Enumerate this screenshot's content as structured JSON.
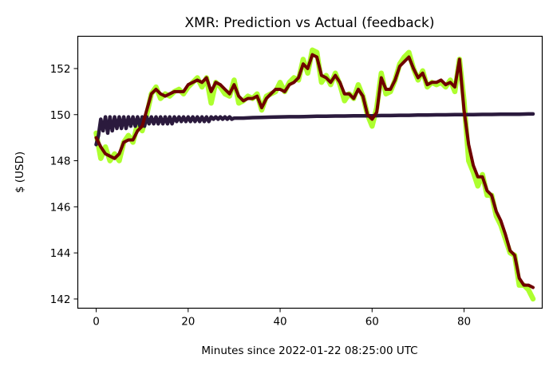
{
  "chart_data": {
    "type": "line",
    "title": "XMR: Prediction vs Actual (feedback)",
    "xlabel": "Minutes since 2022-01-22 08:25:00 UTC",
    "ylabel": "$ (USD)",
    "xlim": [
      -4,
      97
    ],
    "ylim": [
      141.6,
      153.4
    ],
    "xticks": [
      0,
      20,
      40,
      60,
      80
    ],
    "yticks": [
      142,
      144,
      146,
      148,
      150,
      152
    ],
    "grid": false,
    "legend": "none",
    "series": [
      {
        "role": "actual",
        "color": "#adff2f",
        "x": [
          0,
          1,
          2,
          3,
          4,
          5,
          6,
          7,
          8,
          9,
          10,
          11,
          12,
          13,
          14,
          15,
          16,
          17,
          18,
          19,
          20,
          21,
          22,
          23,
          24,
          25,
          26,
          27,
          28,
          29,
          30,
          31,
          32,
          33,
          34,
          35,
          36,
          37,
          38,
          39,
          40,
          41,
          42,
          43,
          44,
          45,
          46,
          47,
          48,
          49,
          50,
          51,
          52,
          53,
          54,
          55,
          56,
          57,
          58,
          59,
          60,
          61,
          62,
          63,
          64,
          65,
          66,
          67,
          68,
          69,
          70,
          71,
          72,
          73,
          74,
          75,
          76,
          77,
          78,
          79,
          80,
          81,
          82,
          83,
          84,
          85,
          86,
          87,
          88,
          89,
          90,
          91,
          92,
          93,
          94,
          95
        ],
        "y": [
          149.2,
          148.1,
          148.6,
          148.0,
          148.3,
          148.0,
          148.8,
          149.1,
          148.8,
          149.6,
          149.3,
          150.0,
          150.9,
          151.2,
          150.7,
          150.9,
          150.8,
          151.0,
          151.1,
          150.9,
          151.2,
          151.4,
          151.6,
          151.2,
          151.6,
          150.5,
          151.4,
          151.2,
          150.9,
          150.8,
          151.5,
          150.5,
          150.6,
          150.8,
          150.7,
          150.9,
          150.2,
          150.8,
          150.9,
          151.0,
          151.4,
          151.0,
          151.4,
          151.6,
          151.5,
          152.4,
          151.8,
          152.8,
          152.7,
          151.4,
          151.7,
          151.3,
          151.8,
          151.3,
          150.6,
          150.9,
          150.7,
          151.3,
          150.8,
          150.0,
          149.5,
          150.3,
          151.8,
          150.9,
          151.0,
          151.5,
          152.2,
          152.5,
          152.7,
          152.0,
          151.5,
          151.9,
          151.2,
          151.4,
          151.3,
          151.4,
          151.2,
          151.5,
          151.0,
          152.4,
          150.6,
          148.0,
          147.5,
          146.9,
          147.4,
          146.5,
          146.5,
          145.6,
          145.2,
          144.6,
          144.0,
          143.9,
          142.6,
          142.6,
          142.4,
          142.0
        ]
      },
      {
        "role": "prediction",
        "color": "#2b1a3d",
        "x": [
          0,
          0.5,
          1,
          1.5,
          2,
          2.5,
          3,
          3.5,
          4,
          4.5,
          5,
          5.5,
          6,
          6.5,
          7,
          7.5,
          8,
          8.5,
          9,
          9.5,
          10,
          10.5,
          11,
          11.5,
          12,
          12.5,
          13,
          13.5,
          14,
          14.5,
          15,
          15.5,
          16,
          16.5,
          17,
          17.5,
          18,
          18.5,
          19,
          19.5,
          20,
          20.5,
          21,
          21.5,
          22,
          22.5,
          23,
          23.5,
          24,
          24.5,
          25,
          25.5,
          26,
          26.5,
          27,
          27.5,
          28,
          28.5,
          29,
          29.5,
          30,
          31,
          32,
          34,
          36,
          38,
          40,
          42,
          44,
          46,
          48,
          50,
          52,
          54,
          56,
          58,
          60,
          62,
          64,
          66,
          68,
          70,
          72,
          74,
          76,
          78,
          80,
          82,
          84,
          86,
          88,
          90,
          92,
          94,
          95
        ],
        "y": [
          148.7,
          149.1,
          149.8,
          149.3,
          149.9,
          149.2,
          149.9,
          149.3,
          149.9,
          149.4,
          149.9,
          149.4,
          149.9,
          149.4,
          149.9,
          149.5,
          149.9,
          149.5,
          149.9,
          149.5,
          149.9,
          149.5,
          149.9,
          149.6,
          149.9,
          149.6,
          149.9,
          149.6,
          149.9,
          149.6,
          149.9,
          149.6,
          149.9,
          149.6,
          149.9,
          149.7,
          149.9,
          149.7,
          149.9,
          149.7,
          149.9,
          149.7,
          149.9,
          149.7,
          149.9,
          149.7,
          149.9,
          149.7,
          149.9,
          149.7,
          149.9,
          149.8,
          149.9,
          149.8,
          149.9,
          149.8,
          149.9,
          149.8,
          149.9,
          149.8,
          149.85,
          149.85,
          149.85,
          149.87,
          149.88,
          149.89,
          149.9,
          149.91,
          149.91,
          149.92,
          149.93,
          149.93,
          149.94,
          149.94,
          149.95,
          149.95,
          149.95,
          149.96,
          149.96,
          149.97,
          149.97,
          149.98,
          149.98,
          149.99,
          149.99,
          150.0,
          150.0,
          150.0,
          150.01,
          150.01,
          150.02,
          150.02,
          150.02,
          150.03,
          150.03
        ]
      },
      {
        "role": "feedback",
        "color": "#6e0000",
        "x": [
          0,
          1,
          2,
          3,
          4,
          5,
          6,
          7,
          8,
          9,
          10,
          11,
          12,
          13,
          14,
          15,
          16,
          17,
          18,
          19,
          20,
          21,
          22,
          23,
          24,
          25,
          26,
          27,
          28,
          29,
          30,
          31,
          32,
          33,
          34,
          35,
          36,
          37,
          38,
          39,
          40,
          41,
          42,
          43,
          44,
          45,
          46,
          47,
          48,
          49,
          50,
          51,
          52,
          53,
          54,
          55,
          56,
          57,
          58,
          59,
          60,
          61,
          62,
          63,
          64,
          65,
          66,
          67,
          68,
          69,
          70,
          71,
          72,
          73,
          74,
          75,
          76,
          77,
          78,
          79,
          80,
          81,
          82,
          83,
          84,
          85,
          86,
          87,
          88,
          89,
          90,
          91,
          92,
          93,
          94,
          95
        ],
        "y": [
          149.0,
          148.6,
          148.3,
          148.2,
          148.1,
          148.3,
          148.8,
          148.9,
          148.9,
          149.3,
          149.5,
          150.2,
          150.9,
          151.1,
          150.9,
          150.8,
          150.9,
          151.0,
          151.0,
          151.0,
          151.3,
          151.4,
          151.5,
          151.4,
          151.6,
          151.0,
          151.4,
          151.3,
          151.1,
          150.9,
          151.3,
          150.8,
          150.6,
          150.7,
          150.7,
          150.8,
          150.3,
          150.7,
          150.9,
          151.1,
          151.1,
          151.0,
          151.3,
          151.4,
          151.6,
          152.2,
          152.0,
          152.6,
          152.5,
          151.7,
          151.6,
          151.4,
          151.7,
          151.4,
          150.9,
          150.9,
          150.7,
          151.1,
          150.8,
          150.0,
          149.8,
          150.1,
          151.6,
          151.1,
          151.1,
          151.5,
          152.1,
          152.3,
          152.5,
          152.0,
          151.6,
          151.8,
          151.3,
          151.4,
          151.4,
          151.5,
          151.3,
          151.4,
          151.2,
          152.4,
          150.2,
          148.7,
          147.8,
          147.3,
          147.3,
          146.7,
          146.5,
          145.8,
          145.4,
          144.8,
          144.1,
          143.9,
          142.9,
          142.6,
          142.6,
          142.5
        ]
      }
    ]
  }
}
